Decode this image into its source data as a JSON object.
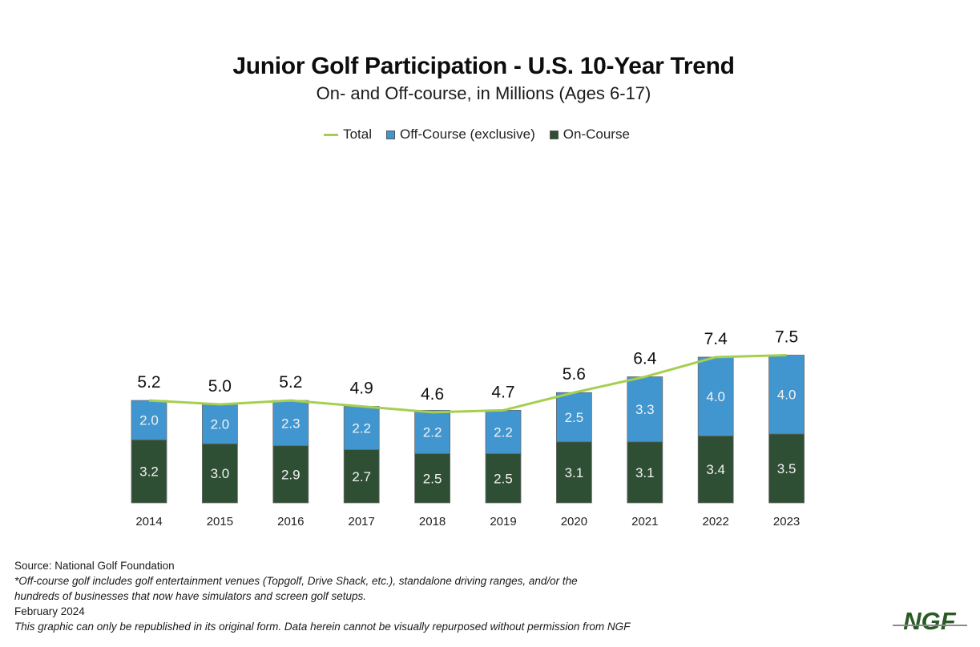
{
  "colors": {
    "total_line": "#a6cf4f",
    "off_course": "#4196d0",
    "on_course": "#2f4f35",
    "bar_border": "#6b6b6b",
    "logo": "#2a5a25"
  },
  "legend": {
    "items": [
      {
        "label": "Total",
        "type": "line",
        "color": "#a6cf4f"
      },
      {
        "label": "Off-Course (exclusive)",
        "type": "box",
        "color": "#4196d0"
      },
      {
        "label": "On-Course",
        "type": "box",
        "color": "#2f4f35"
      }
    ]
  },
  "footer": {
    "source": "Source: National Golf Foundation",
    "note_line1": "*Off-course golf includes golf entertainment venues (Topgolf, Drive Shack, etc.), standalone driving ranges, and/or the",
    "note_line2": "hundreds of businesses that now have simulators and screen golf setups.",
    "date": "February 2024",
    "disclaimer": "This graphic can only be republished in its original form. Data herein cannot be visually repurposed without permission from NGF"
  },
  "logo": {
    "text": "NGF"
  },
  "chart_data": {
    "type": "bar",
    "stacked": true,
    "title": "Junior Golf Participation - U.S. 10-Year Trend",
    "subtitle": "On- and Off-course, in Millions (Ages 6-17)",
    "xlabel": "",
    "ylabel": "",
    "ylim": [
      0,
      8
    ],
    "grid": false,
    "legend_position": "top-center",
    "categories": [
      "2014",
      "2015",
      "2016",
      "2017",
      "2018",
      "2019",
      "2020",
      "2021",
      "2022",
      "2023"
    ],
    "series": [
      {
        "name": "On-Course",
        "type": "bar",
        "values": [
          3.2,
          3.0,
          2.9,
          2.7,
          2.5,
          2.5,
          3.1,
          3.1,
          3.4,
          3.5
        ]
      },
      {
        "name": "Off-Course (exclusive)",
        "type": "bar",
        "values": [
          2.0,
          2.0,
          2.3,
          2.2,
          2.2,
          2.2,
          2.5,
          3.3,
          4.0,
          4.0
        ]
      },
      {
        "name": "Total",
        "type": "line",
        "values": [
          5.2,
          5.0,
          5.2,
          4.9,
          4.6,
          4.7,
          5.6,
          6.4,
          7.4,
          7.5
        ]
      }
    ]
  }
}
